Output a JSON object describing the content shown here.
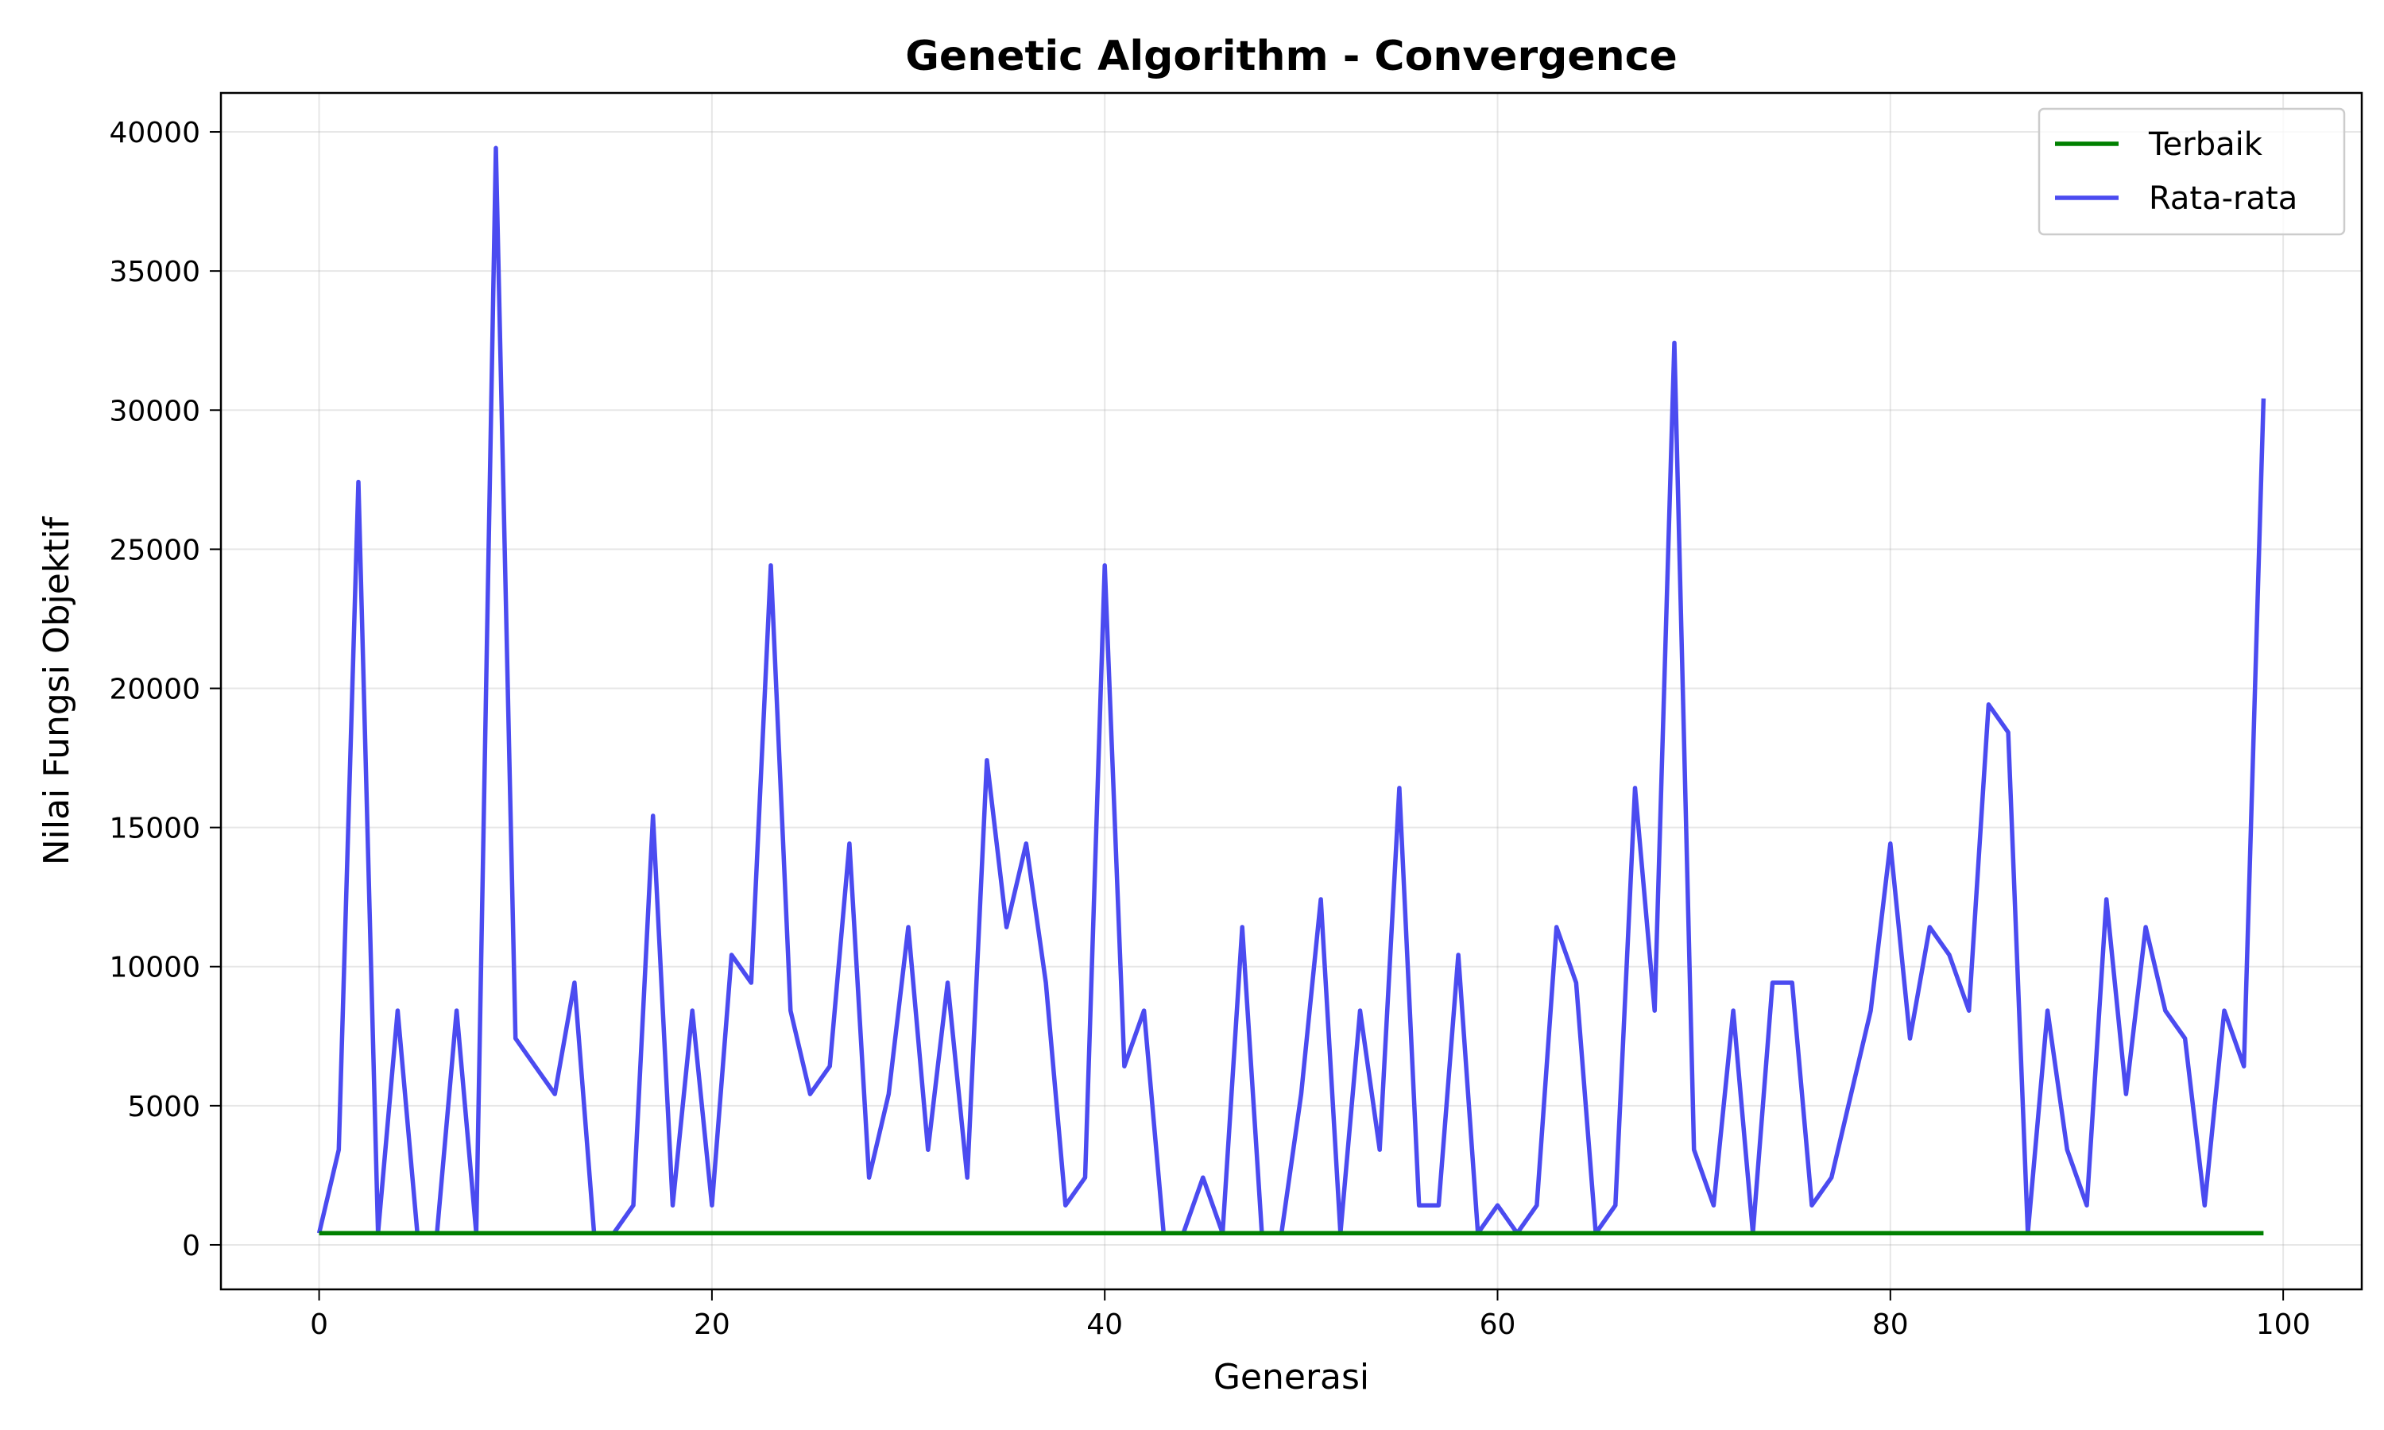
{
  "chart_data": {
    "type": "line",
    "title": "Genetic Algorithm - Convergence",
    "xlabel": "Generasi",
    "ylabel": "Nilai Fungsi Objektif",
    "xlim": [
      -5,
      104
    ],
    "ylim": [
      -1600,
      41400
    ],
    "xticks": [
      0,
      20,
      40,
      60,
      80,
      100
    ],
    "yticks": [
      0,
      5000,
      10000,
      15000,
      20000,
      25000,
      30000,
      35000,
      40000
    ],
    "grid": true,
    "legend_position": "top-right",
    "series": [
      {
        "name": "Terbaik",
        "color": "#008000",
        "x": [
          0,
          99
        ],
        "values": [
          420,
          420
        ]
      },
      {
        "name": "Rata-rata",
        "color": "#4b4bf0",
        "x": [
          0,
          1,
          2,
          3,
          4,
          5,
          6,
          7,
          8,
          9,
          10,
          11,
          12,
          13,
          14,
          15,
          16,
          17,
          18,
          19,
          20,
          21,
          22,
          23,
          24,
          25,
          26,
          27,
          28,
          29,
          30,
          31,
          32,
          33,
          34,
          35,
          36,
          37,
          38,
          39,
          40,
          41,
          42,
          43,
          44,
          45,
          46,
          47,
          48,
          49,
          50,
          51,
          52,
          53,
          54,
          55,
          56,
          57,
          58,
          59,
          60,
          61,
          62,
          63,
          64,
          65,
          66,
          67,
          68,
          69,
          70,
          71,
          72,
          73,
          74,
          75,
          76,
          77,
          78,
          79,
          80,
          81,
          82,
          83,
          84,
          85,
          86,
          87,
          88,
          89,
          90,
          91,
          92,
          93,
          94,
          95,
          96,
          97,
          98,
          99
        ],
        "values": [
          420,
          3420,
          27420,
          420,
          8420,
          420,
          420,
          8420,
          420,
          39420,
          7420,
          6420,
          5420,
          9420,
          420,
          420,
          1420,
          15420,
          1420,
          8420,
          1420,
          10420,
          9420,
          24420,
          8420,
          5420,
          6420,
          14420,
          2420,
          5420,
          11420,
          3420,
          9420,
          2420,
          17420,
          11420,
          14420,
          9420,
          1420,
          2420,
          24420,
          6420,
          8420,
          420,
          420,
          2420,
          420,
          11420,
          420,
          420,
          5420,
          12420,
          420,
          8420,
          3420,
          16420,
          1420,
          1420,
          10420,
          420,
          1420,
          420,
          1420,
          11420,
          9420,
          420,
          1420,
          16420,
          8420,
          32420,
          3420,
          1420,
          8420,
          420,
          9420,
          9420,
          1420,
          2420,
          5420,
          8420,
          14420,
          7420,
          11420,
          10420,
          8420,
          19420,
          18420,
          420,
          8420,
          3420,
          1420,
          12420,
          5420,
          11420,
          8420,
          7420,
          1420,
          8420,
          6420,
          30420
        ]
      }
    ]
  }
}
